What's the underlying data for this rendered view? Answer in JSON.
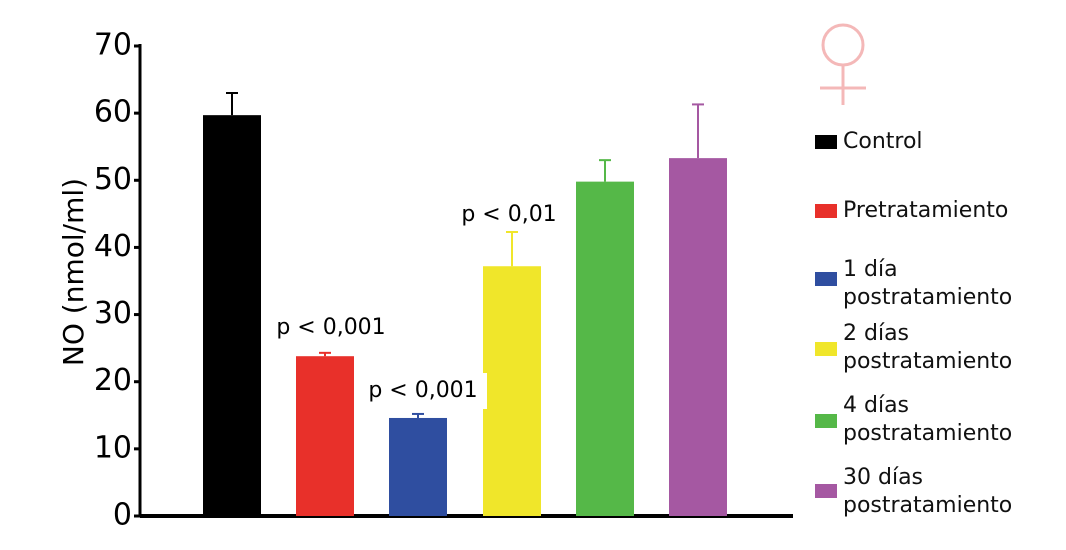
{
  "chart_data": {
    "type": "bar",
    "y_label": "NO (nmol/ml)",
    "categories": [
      "Control",
      "Pretratamiento",
      "1 día\npostratamiento",
      "2 días\npostratamiento",
      "4 días\npostratamiento",
      "30 días\npostratamiento"
    ],
    "values": [
      59.7,
      23.8,
      14.6,
      37.2,
      49.8,
      53.3
    ],
    "errors": [
      3.3,
      0.5,
      0.6,
      5.1,
      3.2,
      8.0
    ],
    "colors": [
      "#000000",
      "#e8302a",
      "#2f4ea0",
      "#f0e62a",
      "#55b848",
      "#a558a2"
    ],
    "annotations": [
      "p < 0,001",
      "p < 0,001",
      "p < 0,01"
    ],
    "ylim": [
      0,
      70
    ],
    "yticks": [
      0,
      10,
      20,
      30,
      40,
      50,
      60,
      70
    ]
  }
}
